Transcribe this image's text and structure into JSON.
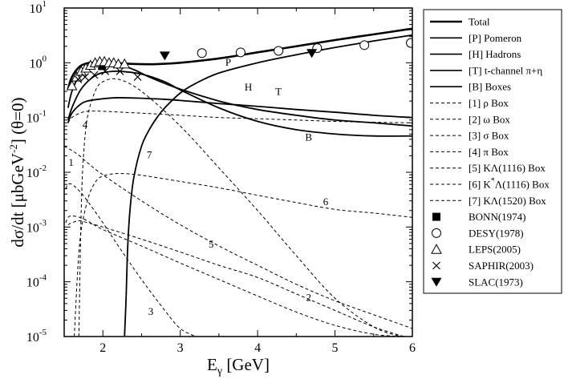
{
  "chart_data": {
    "type": "line",
    "xlabel_main": "E",
    "xlabel_sub": "γ",
    "xlabel_rest": " [GeV]",
    "ylabel_pre": "dσ/dt [μbGeV",
    "ylabel_sup": "-2",
    "ylabel_post": "] (θ=0)",
    "xlim": [
      1.5,
      6.0
    ],
    "ylim": [
      1e-05,
      10
    ],
    "xscale": "linear",
    "yscale": "log",
    "x_ticks": [
      2,
      3,
      4,
      5,
      6
    ],
    "x_tick_labels": [
      "2",
      "3",
      "4",
      "5",
      "6"
    ],
    "y_ticks": [
      {
        "exp": -5,
        "base": "10",
        "sup": "-5"
      },
      {
        "exp": -4,
        "base": "10",
        "sup": "-4"
      },
      {
        "exp": -3,
        "base": "10",
        "sup": "-3"
      },
      {
        "exp": -2,
        "base": "10",
        "sup": "-2"
      },
      {
        "exp": -1,
        "base": "10",
        "sup": "-1"
      },
      {
        "exp": 0,
        "base": "10",
        "sup": "0"
      },
      {
        "exp": 1,
        "base": "10",
        "sup": "1"
      }
    ],
    "series": [
      {
        "id": "total",
        "name": "Total",
        "style": "solid",
        "width": 2.6,
        "x": [
          1.55,
          1.6,
          1.7,
          1.8,
          1.9,
          2.0,
          2.2,
          2.4,
          2.6,
          2.8,
          3.0,
          3.5,
          4.0,
          4.5,
          5.0,
          5.5,
          6.0
        ],
        "y": [
          0.33,
          0.55,
          0.85,
          0.98,
          1.0,
          1.0,
          0.98,
          0.95,
          0.94,
          0.96,
          1.0,
          1.2,
          1.55,
          2.0,
          2.6,
          3.3,
          4.2
        ]
      },
      {
        "id": "pomeron",
        "name": "[P] Pomeron",
        "style": "solid",
        "width": 1.8,
        "x": [
          2.28,
          2.3,
          2.32,
          2.35,
          2.4,
          2.5,
          2.6,
          2.7,
          2.8,
          3.0,
          3.2,
          3.5,
          4.0,
          4.5,
          5.0,
          5.5,
          6.0
        ],
        "y": [
          1e-05,
          5e-05,
          0.0004,
          0.002,
          0.008,
          0.03,
          0.06,
          0.1,
          0.15,
          0.28,
          0.42,
          0.65,
          1.0,
          1.4,
          1.9,
          2.5,
          3.2
        ]
      },
      {
        "id": "hadrons",
        "name": "[H] Hadrons",
        "style": "solid",
        "width": 1.8,
        "x": [
          1.55,
          1.6,
          1.7,
          1.8,
          1.9,
          2.0,
          2.1,
          2.2,
          2.4,
          2.6,
          2.8,
          3.0,
          3.5,
          4.0,
          4.5,
          5.0,
          5.5,
          6.0
        ],
        "y": [
          0.15,
          0.3,
          0.6,
          0.85,
          1.0,
          1.05,
          1.02,
          0.95,
          0.75,
          0.55,
          0.42,
          0.33,
          0.2,
          0.14,
          0.11,
          0.09,
          0.08,
          0.07
        ]
      },
      {
        "id": "tchannel",
        "name": "[T] t-channel π+η",
        "style": "solid",
        "width": 1.8,
        "x": [
          1.55,
          1.6,
          1.7,
          1.8,
          2.0,
          2.2,
          2.5,
          2.8,
          3.0,
          3.5,
          4.0,
          4.5,
          5.0,
          5.5,
          6.0
        ],
        "y": [
          0.08,
          0.12,
          0.17,
          0.2,
          0.22,
          0.23,
          0.225,
          0.215,
          0.205,
          0.18,
          0.16,
          0.14,
          0.125,
          0.11,
          0.1
        ]
      },
      {
        "id": "boxes",
        "name": "[B] Boxes",
        "style": "solid",
        "width": 1.8,
        "x": [
          1.55,
          1.6,
          1.7,
          1.8,
          1.9,
          2.0,
          2.2,
          2.5,
          2.8,
          3.0,
          3.5,
          4.0,
          4.5,
          5.0,
          5.5,
          6.0
        ],
        "y": [
          0.09,
          0.15,
          0.3,
          0.45,
          0.58,
          0.66,
          0.7,
          0.62,
          0.45,
          0.32,
          0.15,
          0.085,
          0.06,
          0.05,
          0.046,
          0.046
        ]
      },
      {
        "id": "rho",
        "name": "[1] ρ Box",
        "style": "dashed",
        "width": 1.0,
        "x": [
          1.5,
          1.6,
          1.7,
          1.8,
          2.0,
          2.5,
          3.0,
          3.5,
          4.0,
          4.5,
          5.0,
          5.5,
          6.0
        ],
        "y": [
          0.03,
          0.025,
          0.02,
          0.015,
          0.009,
          0.003,
          0.0011,
          0.00045,
          0.0002,
          9e-05,
          4.5e-05,
          2.5e-05,
          1.4e-05
        ]
      },
      {
        "id": "omega",
        "name": "[2] ω Box",
        "style": "dashed",
        "width": 1.0,
        "x": [
          1.52,
          1.55,
          1.6,
          1.7,
          1.8,
          2.0,
          2.5,
          3.0,
          3.5,
          4.0,
          4.5,
          5.0,
          5.5,
          5.9
        ],
        "y": [
          0.0012,
          0.0015,
          0.0016,
          0.0015,
          0.0013,
          0.0009,
          0.00045,
          0.00022,
          0.00011,
          5.5e-05,
          2.8e-05,
          1.6e-05,
          1.1e-05,
          1e-05
        ]
      },
      {
        "id": "sigma",
        "name": "[3] σ Box",
        "style": "dashed",
        "width": 1.0,
        "x": [
          1.52,
          1.55,
          1.6,
          1.7,
          1.8,
          2.0,
          2.2,
          2.5,
          2.8,
          3.0,
          3.2
        ],
        "y": [
          0.005,
          0.006,
          0.006,
          0.0045,
          0.003,
          0.0012,
          0.00045,
          0.00011,
          3e-05,
          1.4e-05,
          1e-05
        ]
      },
      {
        "id": "pi",
        "name": "[4] π Box",
        "style": "dashed",
        "width": 1.0,
        "x": [
          1.55,
          1.6,
          1.7,
          1.8,
          2.0,
          2.5,
          3.0,
          3.5,
          4.0,
          4.5,
          5.0,
          5.5,
          6.0
        ],
        "y": [
          0.08,
          0.1,
          0.12,
          0.13,
          0.13,
          0.12,
          0.11,
          0.1,
          0.095,
          0.09,
          0.085,
          0.082,
          0.08
        ]
      },
      {
        "id": "klambda",
        "name": "[5] KΛ(1116) Box",
        "style": "dashed",
        "width": 1.0,
        "x": [
          1.55,
          1.6,
          1.7,
          1.8,
          2.0,
          2.5,
          3.0,
          3.5,
          4.0,
          4.5,
          5.0,
          5.5,
          6.0
        ],
        "y": [
          0.0011,
          0.0012,
          0.0013,
          0.0012,
          0.001,
          0.0006,
          0.00035,
          0.0002,
          0.00012,
          6e-05,
          3e-05,
          1.5e-05,
          9e-06
        ]
      },
      {
        "id": "kstar",
        "name": "[6] K*Λ(1116) Box",
        "style": "dashed",
        "width": 1.0,
        "x": [
          1.63,
          1.7,
          1.8,
          1.9,
          2.0,
          2.2,
          2.5,
          3.0,
          3.5,
          4.0,
          4.5,
          5.0,
          5.5,
          6.0
        ],
        "y": [
          1e-05,
          0.0005,
          0.003,
          0.0065,
          0.0085,
          0.0095,
          0.0088,
          0.0068,
          0.0052,
          0.0038,
          0.0028,
          0.0021,
          0.0018,
          0.0015
        ]
      },
      {
        "id": "k1520",
        "name": "[7] KΛ(1520) Box",
        "style": "dashed",
        "width": 1.0,
        "x": [
          1.69,
          1.72,
          1.75,
          1.8,
          1.9,
          2.0,
          2.2,
          2.5,
          3.0,
          3.5,
          4.0,
          4.5,
          5.0,
          5.5,
          5.85
        ],
        "y": [
          1e-05,
          0.002,
          0.02,
          0.1,
          0.3,
          0.45,
          0.5,
          0.3,
          0.07,
          0.012,
          0.002,
          0.0003,
          5e-05,
          1.5e-05,
          1e-05
        ]
      }
    ],
    "curve_labels": [
      {
        "text": "P",
        "x": 3.62,
        "y": 0.88
      },
      {
        "text": "H",
        "x": 3.88,
        "y": 0.31
      },
      {
        "text": "T",
        "x": 4.27,
        "y": 0.26
      },
      {
        "text": "B",
        "x": 4.66,
        "y": 0.038
      },
      {
        "text": "1",
        "x": 1.59,
        "y": 0.013
      },
      {
        "text": "2",
        "x": 4.66,
        "y": 4.5e-05
      },
      {
        "text": "3",
        "x": 2.62,
        "y": 2.5e-05
      },
      {
        "text": "4",
        "x": 1.77,
        "y": 0.064
      },
      {
        "text": "5",
        "x": 3.4,
        "y": 0.00042
      },
      {
        "text": "6",
        "x": 4.88,
        "y": 0.0025
      },
      {
        "text": "7",
        "x": 2.6,
        "y": 0.018
      }
    ],
    "data_sets": [
      {
        "id": "bonn",
        "name": "BONN(1974)",
        "marker": "square",
        "x": [
          1.99
        ],
        "y": [
          0.87
        ]
      },
      {
        "id": "desy",
        "name": "DESY(1978)",
        "marker": "circle",
        "x": [
          3.28,
          3.78,
          4.27,
          4.77,
          5.38,
          5.98
        ],
        "y": [
          1.5,
          1.55,
          1.65,
          1.85,
          2.1,
          2.3
        ]
      },
      {
        "id": "leps",
        "name": "LEPS(2005)",
        "marker": "triangle",
        "x": [
          1.6,
          1.66,
          1.72,
          1.78,
          1.84,
          1.9,
          1.96,
          2.02,
          2.08,
          2.14,
          2.2,
          2.28
        ],
        "y": [
          0.38,
          0.55,
          0.7,
          0.8,
          0.9,
          1.0,
          1.05,
          1.05,
          1.0,
          1.0,
          0.95,
          0.95
        ]
      },
      {
        "id": "saphir",
        "name": "SAPHIR(2003)",
        "marker": "cross",
        "x": [
          1.68,
          1.77,
          1.89,
          2.03,
          2.22,
          2.45
        ],
        "y": [
          0.5,
          0.55,
          0.6,
          0.7,
          0.7,
          0.55
        ]
      },
      {
        "id": "slac",
        "name": "SLAC(1973)",
        "marker": "triangle-down",
        "x": [
          2.8,
          4.7
        ],
        "y": [
          1.35,
          1.5
        ]
      }
    ]
  },
  "legend": {
    "placement": "right",
    "items": [
      {
        "label_pre": "Total",
        "label_sup": "",
        "label_post": "",
        "kind": "line",
        "style": "solid",
        "width": 2.6
      },
      {
        "label_pre": "[P] Pomeron",
        "label_sup": "",
        "label_post": "",
        "kind": "line",
        "style": "solid",
        "width": 1.6
      },
      {
        "label_pre": "[H] Hadrons",
        "label_sup": "",
        "label_post": "",
        "kind": "line",
        "style": "solid",
        "width": 1.6
      },
      {
        "label_pre": "[T] t-channel π+η",
        "label_sup": "",
        "label_post": "",
        "kind": "line",
        "style": "solid",
        "width": 1.6
      },
      {
        "label_pre": "[B] Boxes",
        "label_sup": "",
        "label_post": "",
        "kind": "line",
        "style": "solid",
        "width": 1.6
      },
      {
        "label_pre": "[1] ρ Box",
        "label_sup": "",
        "label_post": "",
        "kind": "line",
        "style": "dashed",
        "width": 1.0
      },
      {
        "label_pre": "[2] ω Box",
        "label_sup": "",
        "label_post": "",
        "kind": "line",
        "style": "dashed",
        "width": 1.0
      },
      {
        "label_pre": "[3] σ Box",
        "label_sup": "",
        "label_post": "",
        "kind": "line",
        "style": "dashed",
        "width": 1.0
      },
      {
        "label_pre": "[4] π Box",
        "label_sup": "",
        "label_post": "",
        "kind": "line",
        "style": "dashed",
        "width": 1.0
      },
      {
        "label_pre": "[5] KΛ(1116) Box",
        "label_sup": "",
        "label_post": "",
        "kind": "line",
        "style": "dashed",
        "width": 1.0
      },
      {
        "label_pre": "[6] K",
        "label_sup": "*",
        "label_post": "Λ(1116) Box",
        "kind": "line",
        "style": "dashed",
        "width": 1.0
      },
      {
        "label_pre": "[7] KΛ(1520) Box",
        "label_sup": "",
        "label_post": "",
        "kind": "line",
        "style": "dashed",
        "width": 1.0
      },
      {
        "label_pre": "BONN(1974)",
        "label_sup": "",
        "label_post": "",
        "kind": "marker",
        "marker": "square"
      },
      {
        "label_pre": "DESY(1978)",
        "label_sup": "",
        "label_post": "",
        "kind": "marker",
        "marker": "circle"
      },
      {
        "label_pre": "LEPS(2005)",
        "label_sup": "",
        "label_post": "",
        "kind": "marker",
        "marker": "triangle"
      },
      {
        "label_pre": "SAPHIR(2003)",
        "label_sup": "",
        "label_post": "",
        "kind": "marker",
        "marker": "cross"
      },
      {
        "label_pre": "SLAC(1973)",
        "label_sup": "",
        "label_post": "",
        "kind": "marker",
        "marker": "triangle-down"
      }
    ]
  },
  "colors": {
    "ink": "#000000",
    "background": "#ffffff"
  }
}
